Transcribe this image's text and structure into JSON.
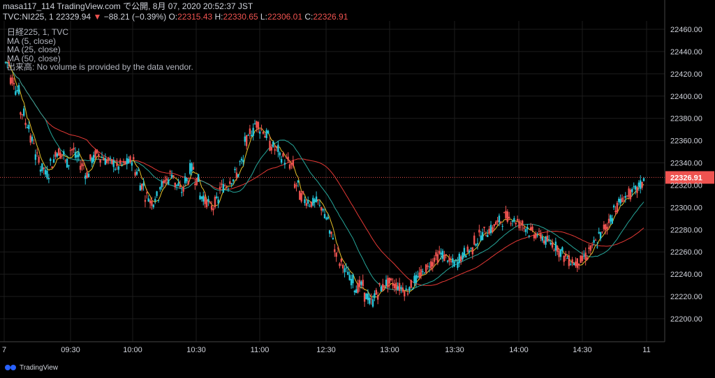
{
  "header": {
    "line1": "masa117_114 TradingView.com で公開, 8月 07, 2020 20:52:37 JST",
    "symbol": "TVC:NI225, 1",
    "last": "22329.94",
    "change": "−88.21 (−0.39%)",
    "o_label": "O:",
    "o": "22315.43",
    "h_label": "H:",
    "h": "22330.65",
    "l_label": "L:",
    "l": "22306.01",
    "c_label": "C:",
    "c": "22326.91"
  },
  "legend": {
    "title": "日経225, 1, TVC",
    "ma5": "MA (5, close)",
    "ma25": "MA (25, close)",
    "ma50": "MA (50, close)",
    "volume": "出来高: No volume is provided by the data vendor."
  },
  "footer": {
    "brand": "TradingView"
  },
  "colors": {
    "up": "#26c6da",
    "down": "#ef5350",
    "ma5": "#e6c229",
    "ma25": "#26a69a",
    "ma50": "#e53935",
    "bg": "#000000",
    "grid": "#1c1c1c",
    "price_line": "#ef5350"
  },
  "chart_data": {
    "type": "candlestick",
    "y_axis": {
      "ticks": [
        22200,
        22220,
        22240,
        22260,
        22280,
        22300,
        22320,
        22340,
        22360,
        22380,
        22400,
        22420,
        22440,
        22460
      ],
      "ylim": [
        22180,
        22468
      ]
    },
    "x_axis": {
      "ticks": [
        "7",
        "09:30",
        "10:00",
        "10:30",
        "11:00",
        "12:30",
        "13:00",
        "13:30",
        "14:00",
        "14:30",
        "11"
      ]
    },
    "last_price_label": "22326.91",
    "close_path": [
      22430,
      22415,
      22405,
      22385,
      22375,
      22360,
      22345,
      22335,
      22330,
      22340,
      22350,
      22348,
      22340,
      22352,
      22345,
      22338,
      22330,
      22343,
      22348,
      22345,
      22342,
      22340,
      22336,
      22338,
      22340,
      22342,
      22332,
      22320,
      22310,
      22305,
      22310,
      22320,
      22325,
      22330,
      22320,
      22315,
      22325,
      22335,
      22325,
      22310,
      22305,
      22300,
      22305,
      22318,
      22320,
      22325,
      22330,
      22340,
      22360,
      22368,
      22375,
      22370,
      22365,
      22355,
      22352,
      22345,
      22342,
      22338,
      22320,
      22310,
      22306,
      22304,
      22305,
      22300,
      22290,
      22275,
      22260,
      22250,
      22242,
      22235,
      22228,
      22230,
      22220,
      22215,
      22222,
      22228,
      22232,
      22232,
      22230,
      22228,
      22225,
      22230,
      22235,
      22240,
      22245,
      22250,
      22255,
      22258,
      22255,
      22250,
      22250,
      22255,
      22260,
      22262,
      22270,
      22275,
      22278,
      22280,
      22285,
      22288,
      22292,
      22290,
      22288,
      22285,
      22282,
      22278,
      22276,
      22274,
      22270,
      22268,
      22265,
      22260,
      22255,
      22252,
      22250,
      22252,
      22256,
      22262,
      22268,
      22275,
      22282,
      22290,
      22300,
      22305,
      22310,
      22312,
      22315,
      22320,
      22326.91
    ]
  }
}
